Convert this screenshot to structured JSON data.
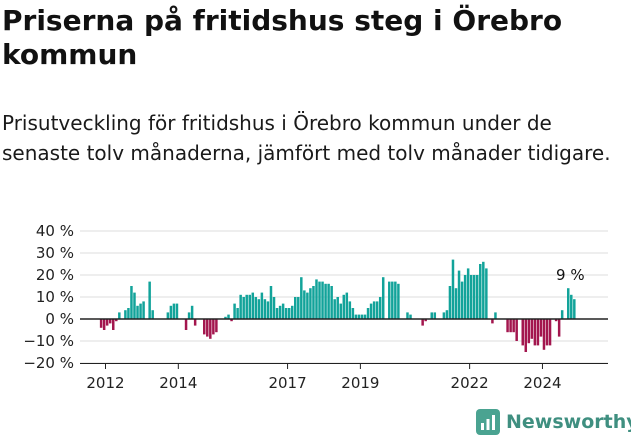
{
  "header": {
    "title": "Priserna på fritidshus steg i Örebro kommun",
    "subtitle": "Prisutveckling för fritidshus i Örebro kommun under de senaste tolv månaderna, jämfört med tolv månader tidigare."
  },
  "brand": {
    "name": "Newsworthy",
    "icon": "newsworthy-logo-icon",
    "color": "#4aa391"
  },
  "colors": {
    "positive": "#12a39a",
    "negative": "#a3164e",
    "zero_line": "#222222",
    "grid": "#dddddd"
  },
  "chart_data": {
    "type": "bar",
    "y_ticks": [
      "40 %",
      "30 %",
      "20 %",
      "10 %",
      "0 %",
      "−10 %",
      "−20 %"
    ],
    "y_tick_values": [
      40,
      30,
      20,
      10,
      0,
      -10,
      -20
    ],
    "ylim": [
      -20,
      40
    ],
    "x_ticks": [
      {
        "label": "2012",
        "x": 2012.0
      },
      {
        "label": "2014",
        "x": 2014.0
      },
      {
        "label": "2017",
        "x": 2017.0
      },
      {
        "label": "2019",
        "x": 2019.0
      },
      {
        "label": "2022",
        "x": 2022.0
      },
      {
        "label": "2024",
        "x": 2024.0
      }
    ],
    "xlim": [
      2011.3,
      2025.8
    ],
    "start": 2011.88,
    "step": 0.0833,
    "values": [
      -4,
      -5,
      -3,
      -2,
      -5,
      -1,
      3,
      0,
      4,
      5,
      15,
      12,
      6,
      7,
      8,
      0,
      17,
      4,
      0,
      0,
      0,
      0,
      3,
      6,
      7,
      7,
      0,
      0,
      -5,
      3,
      6,
      -3,
      0,
      0,
      -7,
      -8,
      -9,
      -7,
      -6,
      0,
      0,
      1,
      2,
      -1,
      7,
      5,
      11,
      10,
      11,
      11,
      12,
      10,
      9,
      12,
      9,
      8,
      15,
      10,
      5,
      6,
      7,
      5,
      5,
      6,
      10,
      10,
      19,
      13,
      12,
      14,
      15,
      18,
      17,
      17,
      16,
      16,
      15,
      9,
      10,
      7,
      11,
      12,
      8,
      5,
      2,
      2,
      2,
      2,
      5,
      7,
      8,
      8,
      10,
      19,
      0,
      17,
      17,
      17,
      16,
      0,
      0,
      3,
      2,
      0,
      0,
      0,
      -3,
      -1,
      0,
      3,
      3,
      0,
      0,
      3,
      4,
      15,
      27,
      14,
      22,
      17,
      20,
      23,
      20,
      20,
      20,
      25,
      26,
      23,
      0,
      -2,
      3,
      0,
      0,
      0,
      -6,
      -6,
      -6,
      -10,
      0,
      -12,
      -15,
      -11,
      -9,
      -12,
      -12,
      -8,
      -14,
      -12,
      -12,
      0,
      -1,
      -8,
      4,
      0,
      14,
      11,
      9
    ],
    "annotation": {
      "text": "9 %",
      "value": 9
    }
  }
}
